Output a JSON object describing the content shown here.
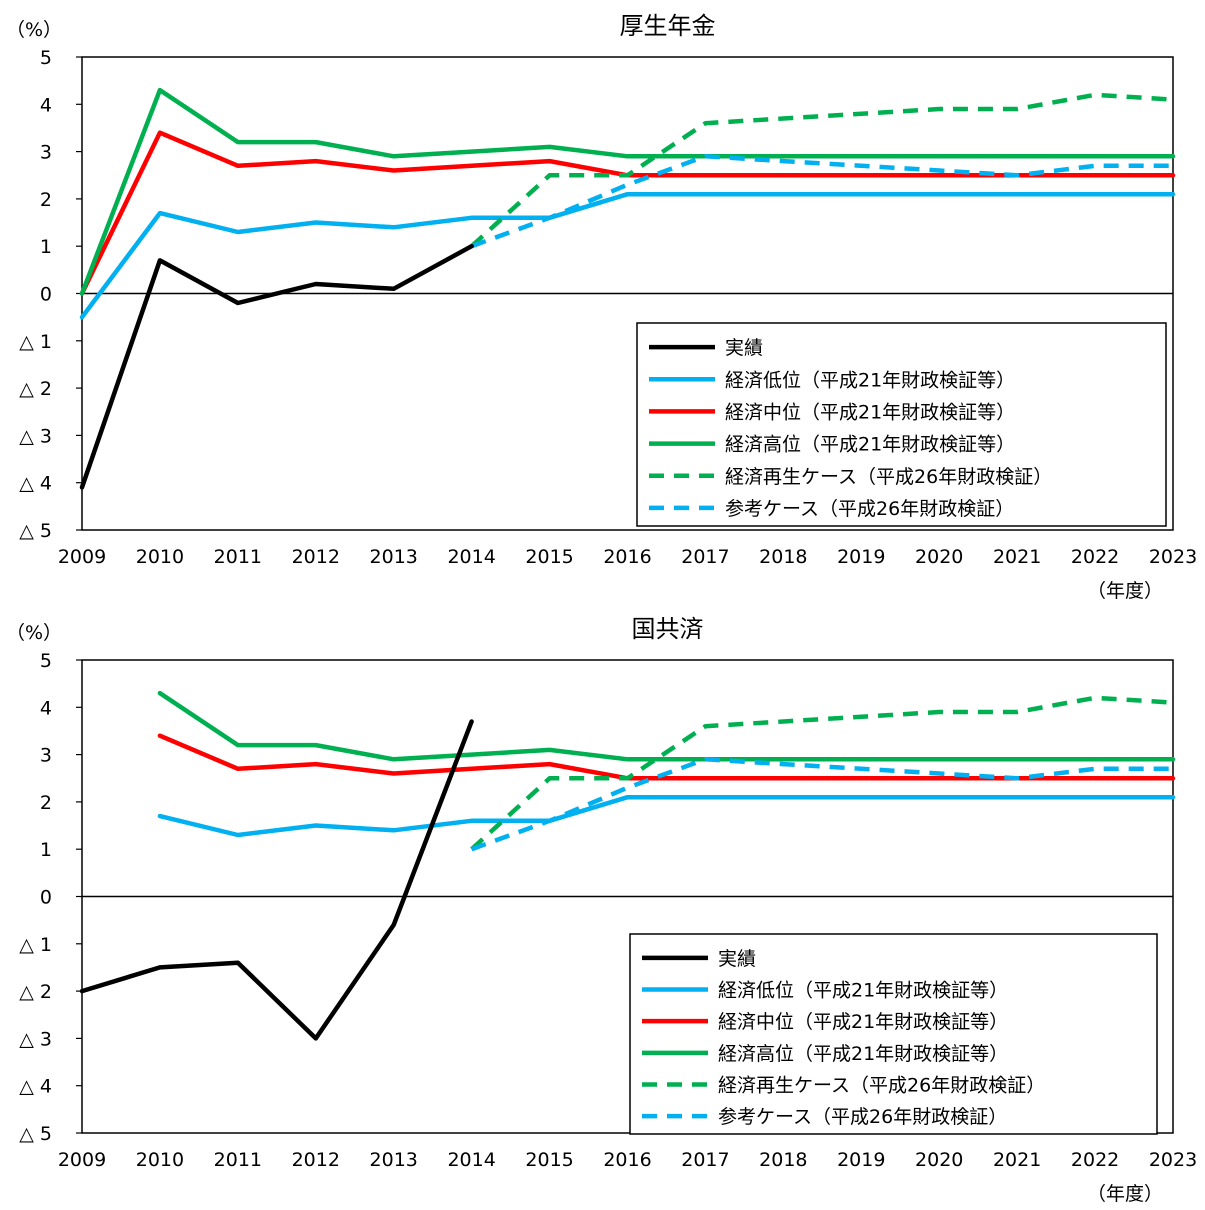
{
  "colors": {
    "actual": "#000000",
    "low": "#00b0f0",
    "mid": "#ff0000",
    "high": "#00b050",
    "revival": "#00b050",
    "reference": "#00b0f0"
  },
  "chart_data": [
    {
      "type": "line",
      "title": "厚生年金",
      "ylabel": "（%）",
      "xlabel": "（年度）",
      "ylim": [
        -5,
        5
      ],
      "yticks": [
        {
          "value": 5,
          "label": "5"
        },
        {
          "value": 4,
          "label": "4"
        },
        {
          "value": 3,
          "label": "3"
        },
        {
          "value": 2,
          "label": "2"
        },
        {
          "value": 1,
          "label": "1"
        },
        {
          "value": 0,
          "label": "0"
        },
        {
          "value": -1,
          "label": "△ 1"
        },
        {
          "value": -2,
          "label": "△ 2"
        },
        {
          "value": -3,
          "label": "△ 3"
        },
        {
          "value": -4,
          "label": "△ 4"
        },
        {
          "value": -5,
          "label": "△ 5"
        }
      ],
      "categories": [
        "2009",
        "2010",
        "2011",
        "2012",
        "2013",
        "2014",
        "2015",
        "2016",
        "2017",
        "2018",
        "2019",
        "2020",
        "2021",
        "2022",
        "2023"
      ],
      "legend_position": "bottom-right",
      "series": [
        {
          "name": "実績",
          "color_key": "actual",
          "dashed": false,
          "values": [
            -4.1,
            0.7,
            -0.2,
            0.2,
            0.1,
            1.0,
            null,
            null,
            null,
            null,
            null,
            null,
            null,
            null,
            null
          ]
        },
        {
          "name": "経済低位（平成21年財政検証等）",
          "color_key": "low",
          "dashed": false,
          "values": [
            -0.5,
            1.7,
            1.3,
            1.5,
            1.4,
            1.6,
            1.6,
            2.1,
            2.1,
            2.1,
            2.1,
            2.1,
            2.1,
            2.1,
            2.1
          ]
        },
        {
          "name": "経済中位（平成21年財政検証等）",
          "color_key": "mid",
          "dashed": false,
          "values": [
            0.0,
            3.4,
            2.7,
            2.8,
            2.6,
            2.7,
            2.8,
            2.5,
            2.5,
            2.5,
            2.5,
            2.5,
            2.5,
            2.5,
            2.5
          ]
        },
        {
          "name": "経済高位（平成21年財政検証等）",
          "color_key": "high",
          "dashed": false,
          "values": [
            0.0,
            4.3,
            3.2,
            3.2,
            2.9,
            3.0,
            3.1,
            2.9,
            2.9,
            2.9,
            2.9,
            2.9,
            2.9,
            2.9,
            2.9
          ]
        },
        {
          "name": "経済再生ケース（平成26年財政検証）",
          "color_key": "revival",
          "dashed": true,
          "values": [
            null,
            null,
            null,
            null,
            null,
            1.0,
            2.5,
            2.5,
            3.6,
            3.7,
            3.8,
            3.9,
            3.9,
            4.2,
            4.1
          ]
        },
        {
          "name": "参考ケース（平成26年財政検証）",
          "color_key": "reference",
          "dashed": true,
          "values": [
            null,
            null,
            null,
            null,
            null,
            1.0,
            1.6,
            2.3,
            2.9,
            2.8,
            2.7,
            2.6,
            2.5,
            2.7,
            2.7
          ]
        }
      ]
    },
    {
      "type": "line",
      "title": "国共済",
      "ylabel": "（%）",
      "xlabel": "（年度）",
      "ylim": [
        -5,
        5
      ],
      "yticks": [
        {
          "value": 5,
          "label": "5"
        },
        {
          "value": 4,
          "label": "4"
        },
        {
          "value": 3,
          "label": "3"
        },
        {
          "value": 2,
          "label": "2"
        },
        {
          "value": 1,
          "label": "1"
        },
        {
          "value": 0,
          "label": "0"
        },
        {
          "value": -1,
          "label": "△ 1"
        },
        {
          "value": -2,
          "label": "△ 2"
        },
        {
          "value": -3,
          "label": "△ 3"
        },
        {
          "value": -4,
          "label": "△ 4"
        },
        {
          "value": -5,
          "label": "△ 5"
        }
      ],
      "categories": [
        "2009",
        "2010",
        "2011",
        "2012",
        "2013",
        "2014",
        "2015",
        "2016",
        "2017",
        "2018",
        "2019",
        "2020",
        "2021",
        "2022",
        "2023"
      ],
      "legend_position": "bottom-right",
      "series": [
        {
          "name": "実績",
          "color_key": "actual",
          "dashed": false,
          "values": [
            -2.0,
            -1.5,
            -1.4,
            -3.0,
            -0.6,
            3.7,
            null,
            null,
            null,
            null,
            null,
            null,
            null,
            null,
            null
          ]
        },
        {
          "name": "経済低位（平成21年財政検証等）",
          "color_key": "low",
          "dashed": false,
          "values": [
            null,
            1.7,
            1.3,
            1.5,
            1.4,
            1.6,
            1.6,
            2.1,
            2.1,
            2.1,
            2.1,
            2.1,
            2.1,
            2.1,
            2.1
          ]
        },
        {
          "name": "経済中位（平成21年財政検証等）",
          "color_key": "mid",
          "dashed": false,
          "values": [
            null,
            3.4,
            2.7,
            2.8,
            2.6,
            2.7,
            2.8,
            2.5,
            2.5,
            2.5,
            2.5,
            2.5,
            2.5,
            2.5,
            2.5
          ]
        },
        {
          "name": "経済高位（平成21年財政検証等）",
          "color_key": "high",
          "dashed": false,
          "values": [
            null,
            4.3,
            3.2,
            3.2,
            2.9,
            3.0,
            3.1,
            2.9,
            2.9,
            2.9,
            2.9,
            2.9,
            2.9,
            2.9,
            2.9
          ]
        },
        {
          "name": "経済再生ケース（平成26年財政検証）",
          "color_key": "revival",
          "dashed": true,
          "values": [
            null,
            null,
            null,
            null,
            null,
            1.0,
            2.5,
            2.5,
            3.6,
            3.7,
            3.8,
            3.9,
            3.9,
            4.2,
            4.1
          ]
        },
        {
          "name": "参考ケース（平成26年財政検証）",
          "color_key": "reference",
          "dashed": true,
          "values": [
            null,
            null,
            null,
            null,
            null,
            1.0,
            1.6,
            2.3,
            2.9,
            2.8,
            2.7,
            2.6,
            2.5,
            2.7,
            2.7
          ]
        }
      ]
    }
  ]
}
